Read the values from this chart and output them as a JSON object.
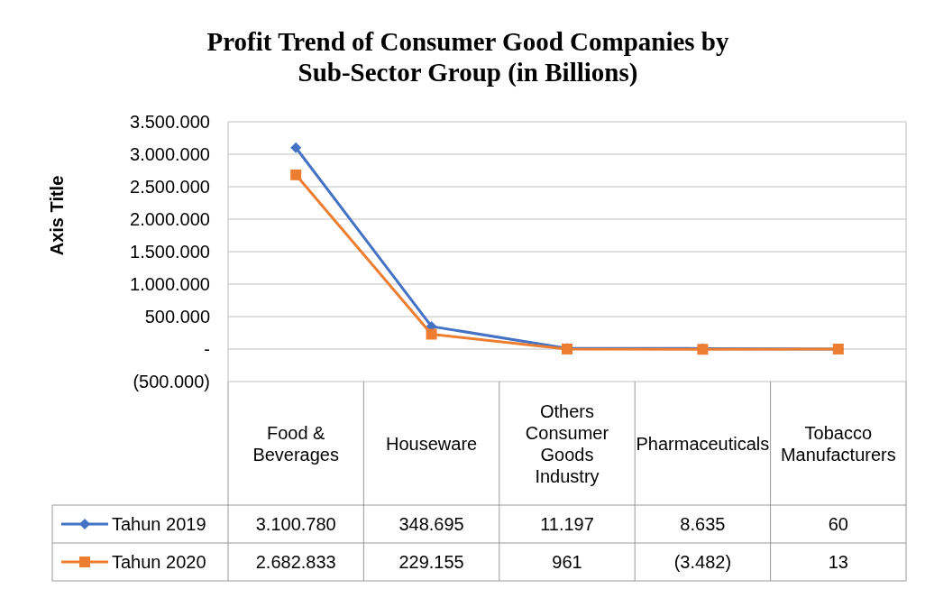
{
  "chart_data": {
    "type": "line",
    "title": "Profit Trend of Consumer Good Companies by Sub-Sector Group (in Billions)",
    "ylabel": "Axis Title",
    "categories": [
      "Food & Beverages",
      "Houseware",
      "Others Consumer Goods Industry",
      "Pharmaceuticals",
      "Tobacco Manufacturers"
    ],
    "series": [
      {
        "name": "Tahun 2019",
        "color": "#4472c4",
        "marker": "diamond",
        "values": [
          3100780,
          348695,
          11197,
          8635,
          60
        ],
        "value_labels": [
          "3.100.780",
          "348.695",
          "11.197",
          "8.635",
          "60"
        ]
      },
      {
        "name": "Tahun 2020",
        "color": "#ed7d31",
        "marker": "square",
        "values": [
          2682833,
          229155,
          961,
          -3482,
          13
        ],
        "value_labels": [
          "2.682.833",
          "229.155",
          "961",
          "(3.482)",
          "13"
        ]
      }
    ],
    "ylim": [
      -500000,
      3500000
    ],
    "yticks": [
      {
        "value": -500000,
        "label": "(500.000)"
      },
      {
        "value": 0,
        "label": "-"
      },
      {
        "value": 500000,
        "label": "500.000"
      },
      {
        "value": 1000000,
        "label": "1.000.000"
      },
      {
        "value": 1500000,
        "label": "1.500.000"
      },
      {
        "value": 2000000,
        "label": "2.000.000"
      },
      {
        "value": 2500000,
        "label": "2.500.000"
      },
      {
        "value": 3000000,
        "label": "3.000.000"
      },
      {
        "value": 3500000,
        "label": "3.500.000"
      }
    ],
    "grid": "y",
    "legend": "bottom",
    "line_style": "solid"
  }
}
